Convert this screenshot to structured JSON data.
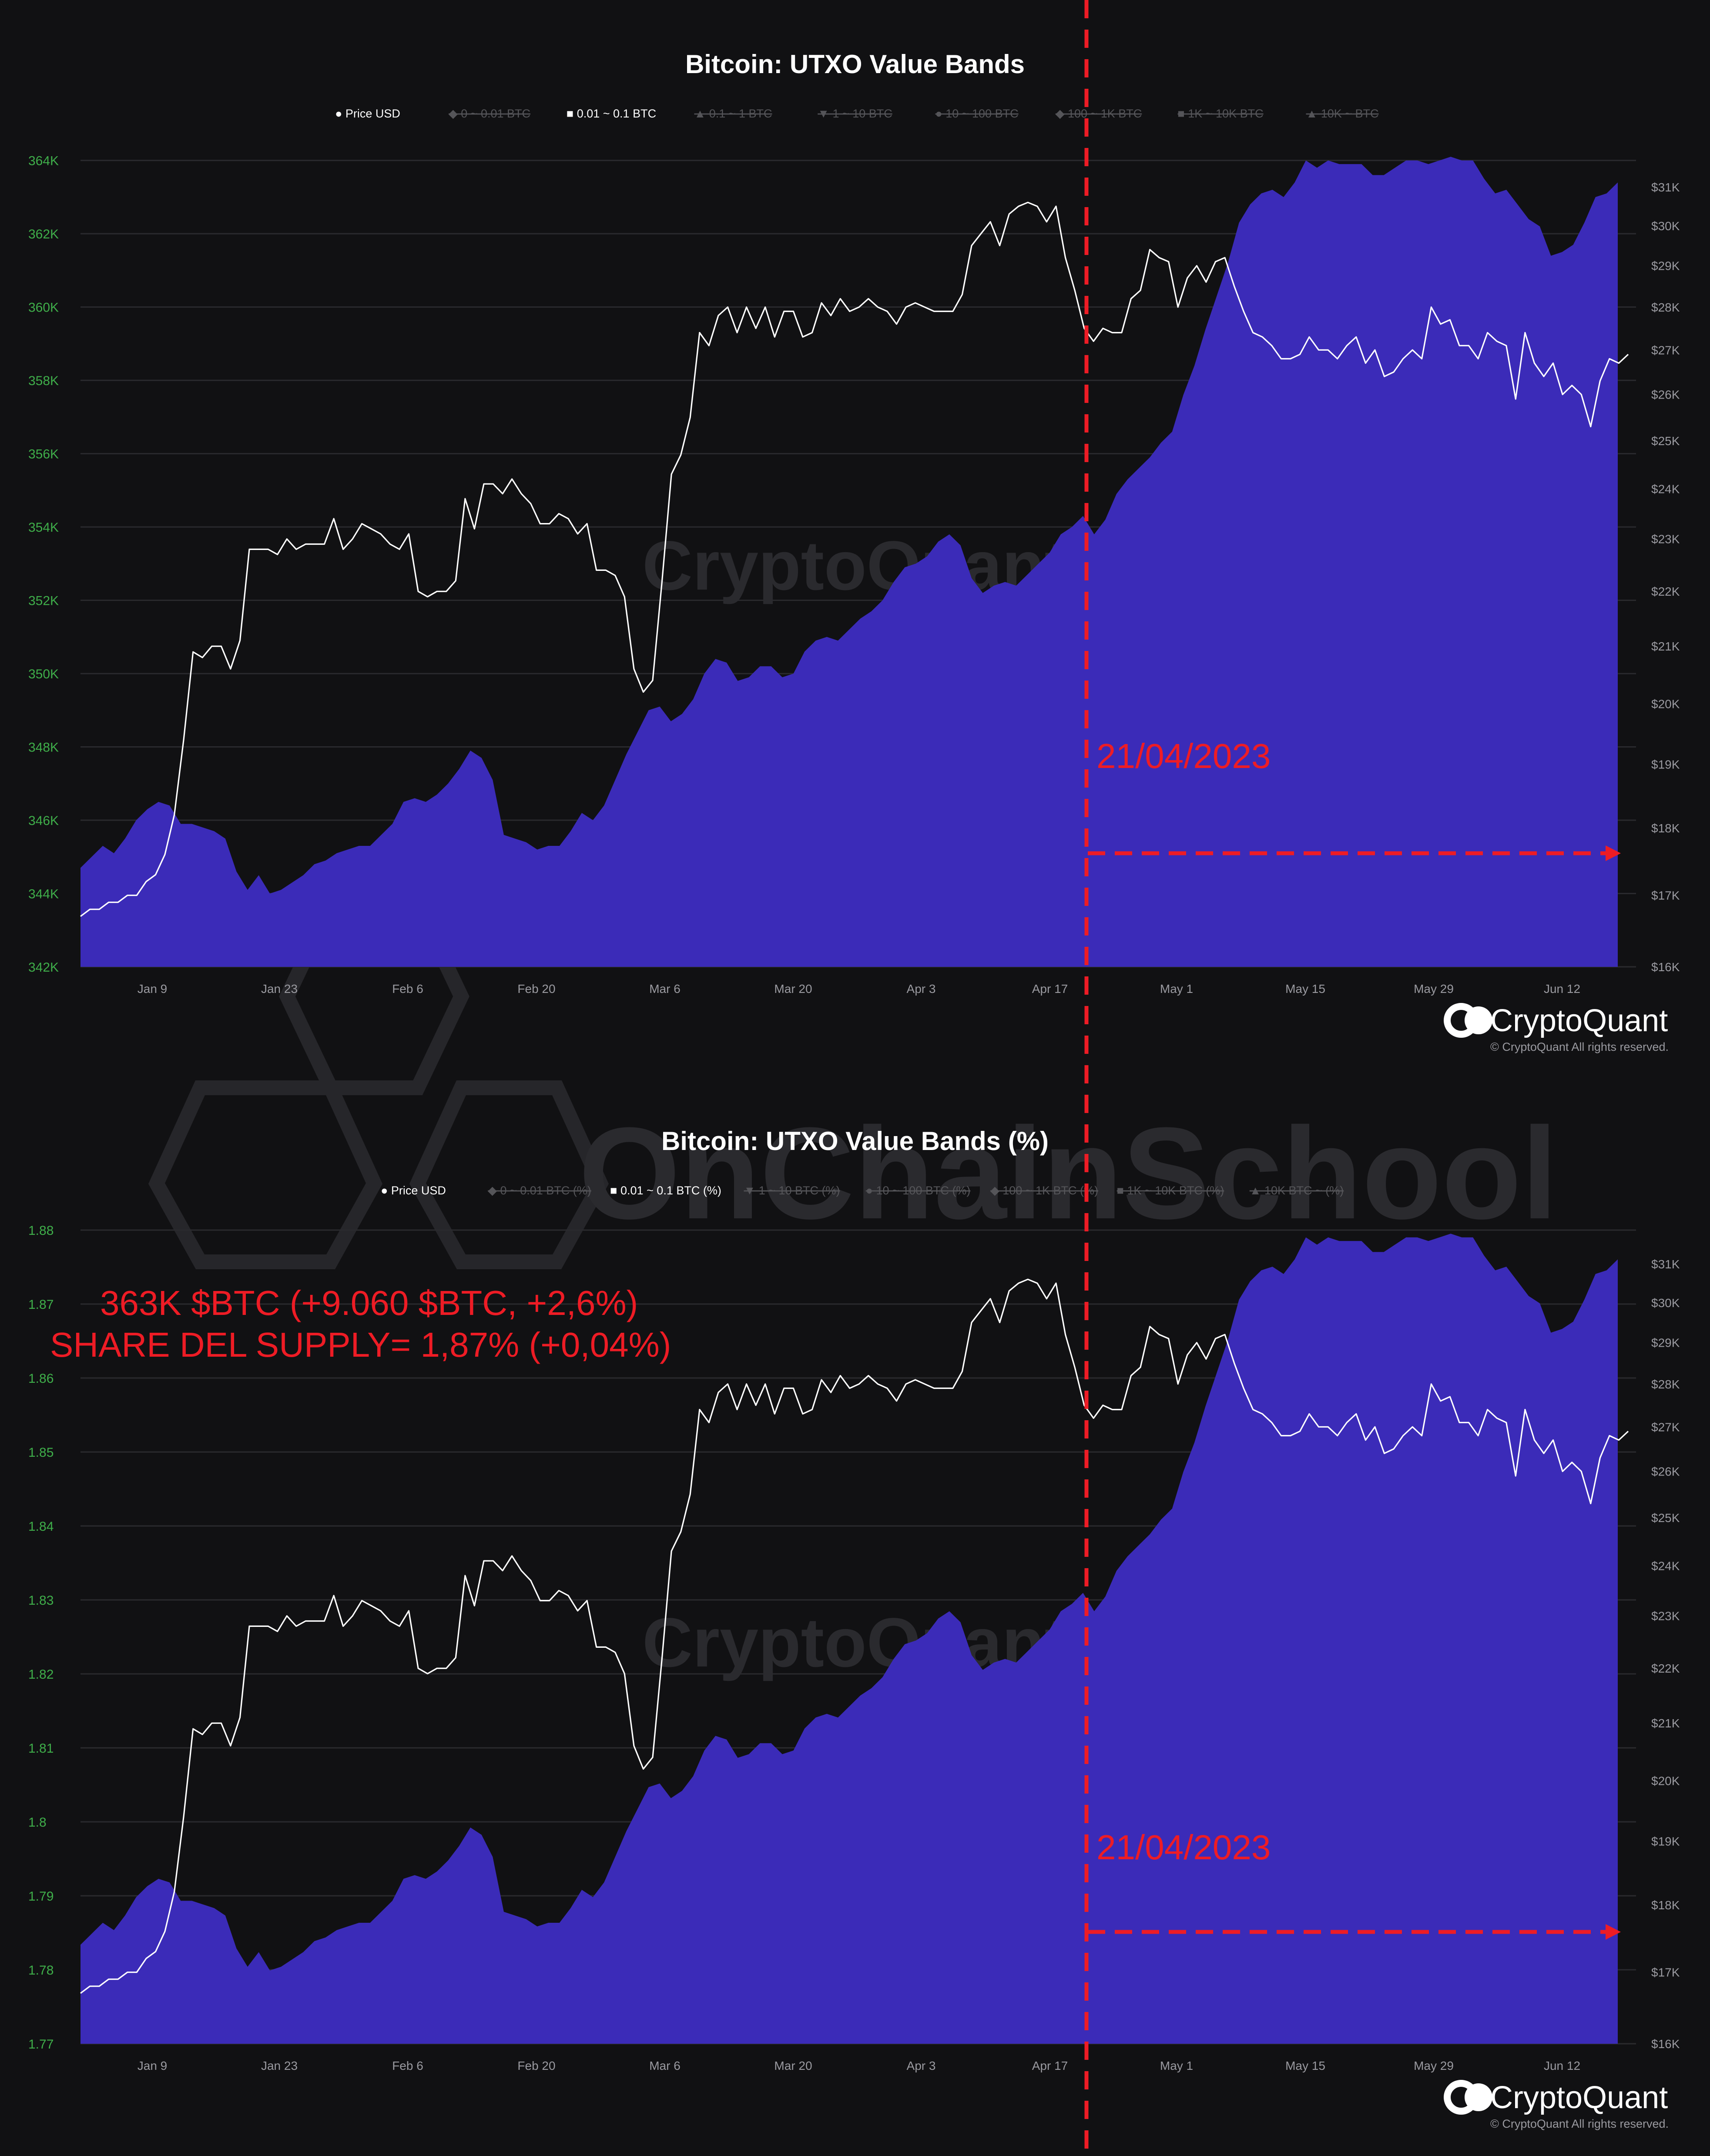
{
  "colors": {
    "background": "#111113",
    "area": "#3b2bb8",
    "price_line": "#ffffff",
    "left_ticks": "#3fae4a",
    "right_ticks": "#9a9aa0",
    "annotation": "#ee1c25",
    "legend_disabled": "#555559"
  },
  "watermarks": {
    "chart_brand": "CryptoQuant",
    "overlay": "OnChainSchool"
  },
  "branding": {
    "logo_text": "CryptoQuant",
    "copyright": "© CryptoQuant All rights reserved."
  },
  "chart_data": [
    {
      "type": "area",
      "title": "Bitcoin: UTXO Value Bands",
      "legend": [
        {
          "label": "Price USD",
          "marker": "●",
          "active": true
        },
        {
          "label": "0 ~ 0.01 BTC",
          "marker": "◆",
          "active": false
        },
        {
          "label": "0.01 ~ 0.1 BTC",
          "marker": "■",
          "active": true
        },
        {
          "label": "0.1 ~ 1 BTC",
          "marker": "▲",
          "active": false
        },
        {
          "label": "1 ~ 10 BTC",
          "marker": "▼",
          "active": false
        },
        {
          "label": "10 ~ 100 BTC",
          "marker": "●",
          "active": false
        },
        {
          "label": "100 ~ 1K BTC",
          "marker": "◆",
          "active": false
        },
        {
          "label": "1K ~ 10K BTC",
          "marker": "■",
          "active": false
        },
        {
          "label": "10K ~ BTC",
          "marker": "▲",
          "active": false
        }
      ],
      "y_left": {
        "ticks": [
          "364K",
          "362K",
          "360K",
          "358K",
          "356K",
          "354K",
          "352K",
          "350K",
          "348K",
          "346K",
          "344K",
          "342K"
        ],
        "range": [
          342000,
          364400
        ]
      },
      "y_right": {
        "ticks": [
          "$31K",
          "$30K",
          "$29K",
          "$28K",
          "$27K",
          "$26K",
          "$25K",
          "$24K",
          "$23K",
          "$22K",
          "$21K",
          "$20K",
          "$19K",
          "$18K",
          "$17K",
          "$16K"
        ],
        "scale": "log",
        "range": [
          16000,
          31000
        ]
      },
      "x_ticks": [
        "Jan 9",
        "Jan 23",
        "Feb 6",
        "Feb 20",
        "Mar 6",
        "Mar 20",
        "Apr 3",
        "Apr 17",
        "May 1",
        "May 15",
        "May 29",
        "Jun 12"
      ],
      "series": [
        {
          "name": "0.01 ~ 0.1 BTC",
          "kind": "area",
          "axis": "left",
          "values": [
            344700,
            345000,
            345300,
            345100,
            345500,
            346000,
            346300,
            346500,
            346400,
            345900,
            345900,
            345800,
            345700,
            345500,
            344600,
            344100,
            344500,
            344000,
            344100,
            344300,
            344500,
            344800,
            344900,
            345100,
            345200,
            345300,
            345300,
            345600,
            345900,
            346500,
            346600,
            346500,
            346700,
            347000,
            347400,
            347900,
            347700,
            347100,
            345600,
            345500,
            345400,
            345200,
            345300,
            345300,
            345700,
            346200,
            346000,
            346400,
            347100,
            347800,
            348400,
            349000,
            349100,
            348700,
            348900,
            349300,
            350000,
            350400,
            350300,
            349800,
            349900,
            350200,
            350200,
            349900,
            350000,
            350600,
            350900,
            351000,
            350900,
            351200,
            351500,
            351700,
            352000,
            352500,
            352900,
            353000,
            353200,
            353600,
            353800,
            353500,
            352600,
            352200,
            352400,
            352500,
            352400,
            352700,
            353000,
            353300,
            353800,
            354000,
            354300,
            353800,
            354200,
            354900,
            355300,
            355600,
            355900,
            356300,
            356600,
            357600,
            358400,
            359400,
            360300,
            361200,
            362300,
            362800,
            363100,
            363200,
            363000,
            363400,
            364000,
            363800,
            364000,
            363900,
            363900,
            363900,
            363600,
            363600,
            363800,
            364000,
            364000,
            363900,
            364000,
            364100,
            364000,
            364000,
            363500,
            363100,
            363200,
            362800,
            362400,
            362200,
            361400,
            361500,
            361700,
            362300,
            363000,
            363100,
            363400
          ]
        },
        {
          "name": "Price USD",
          "kind": "line",
          "axis": "right",
          "values": [
            16700,
            16800,
            16800,
            16900,
            16900,
            17000,
            17000,
            17200,
            17300,
            17600,
            18200,
            19400,
            20900,
            20800,
            21000,
            21000,
            20600,
            21100,
            22800,
            22800,
            22800,
            22700,
            23000,
            22800,
            22900,
            22900,
            22900,
            23400,
            22800,
            23000,
            23300,
            23200,
            23100,
            22900,
            22800,
            23100,
            22000,
            21900,
            22000,
            22000,
            22200,
            23800,
            23200,
            24100,
            24100,
            23900,
            24200,
            23900,
            23700,
            23300,
            23300,
            23500,
            23400,
            23100,
            23300,
            22400,
            22400,
            22300,
            21900,
            20600,
            20200,
            20400,
            22200,
            24300,
            24700,
            25500,
            27400,
            27100,
            27800,
            28000,
            27400,
            28000,
            27500,
            28000,
            27300,
            27900,
            27900,
            27300,
            27400,
            28100,
            27800,
            28200,
            27900,
            28000,
            28200,
            28000,
            27900,
            27600,
            28000,
            28100,
            28000,
            27900,
            27900,
            27900,
            28300,
            29500,
            29800,
            30100,
            29500,
            30300,
            30500,
            30600,
            30500,
            30100,
            30500,
            29200,
            28400,
            27500,
            27200,
            27500,
            27400,
            27400,
            28200,
            28400,
            29400,
            29200,
            29100,
            28000,
            28700,
            29000,
            28600,
            29100,
            29200,
            28500,
            27900,
            27400,
            27300,
            27100,
            26800,
            26800,
            26900,
            27300,
            27000,
            27000,
            26800,
            27100,
            27300,
            26700,
            27000,
            26400,
            26500,
            26800,
            27000,
            26800,
            28000,
            27600,
            27700,
            27100,
            27100,
            26800,
            27400,
            27200,
            27100,
            25900,
            27400,
            26700,
            26400,
            26700,
            26000,
            26200,
            26000,
            25300,
            26300,
            26800,
            26700,
            26900
          ]
        }
      ],
      "annotations": [
        {
          "text": "21/04/2023"
        }
      ]
    },
    {
      "type": "area",
      "title": "Bitcoin: UTXO Value Bands (%)",
      "legend": [
        {
          "label": "Price USD",
          "marker": "●",
          "active": true
        },
        {
          "label": "0 ~ 0.01 BTC (%)",
          "marker": "◆",
          "active": false
        },
        {
          "label": "0.01 ~ 0.1 BTC (%)",
          "marker": "■",
          "active": true
        },
        {
          "label": "1 ~ 10 BTC (%)",
          "marker": "▼",
          "active": false
        },
        {
          "label": "10 ~ 100 BTC (%)",
          "marker": "●",
          "active": false
        },
        {
          "label": "100 ~ 1K BTC (%)",
          "marker": "◆",
          "active": false
        },
        {
          "label": "1K ~ 10K BTC (%)",
          "marker": "■",
          "active": false
        },
        {
          "label": "10K BTC ~ (%)",
          "marker": "▲",
          "active": false
        }
      ],
      "y_left": {
        "ticks": [
          "1.88",
          "1.87",
          "1.86",
          "1.85",
          "1.84",
          "1.83",
          "1.82",
          "1.81",
          "1.8",
          "1.79",
          "1.78",
          "1.77"
        ],
        "range": [
          1.77,
          1.881
        ]
      },
      "y_right": {
        "ticks": [
          "$31K",
          "$30K",
          "$29K",
          "$28K",
          "$27K",
          "$26K",
          "$25K",
          "$24K",
          "$23K",
          "$22K",
          "$21K",
          "$20K",
          "$19K",
          "$18K",
          "$17K",
          "$16K"
        ],
        "scale": "log",
        "range": [
          16000,
          31000
        ]
      },
      "x_ticks": [
        "Jan 9",
        "Jan 23",
        "Feb 6",
        "Feb 20",
        "Mar 6",
        "Mar 20",
        "Apr 3",
        "Apr 17",
        "May 1",
        "May 15",
        "May 29",
        "Jun 12"
      ],
      "annotations": [
        {
          "text": "363K $BTC (+9.060 $BTC, +2,6%)"
        },
        {
          "text": "SHARE DEL SUPPLY= 1,87% (+0,04%)"
        },
        {
          "text": "21/04/2023"
        }
      ]
    }
  ]
}
